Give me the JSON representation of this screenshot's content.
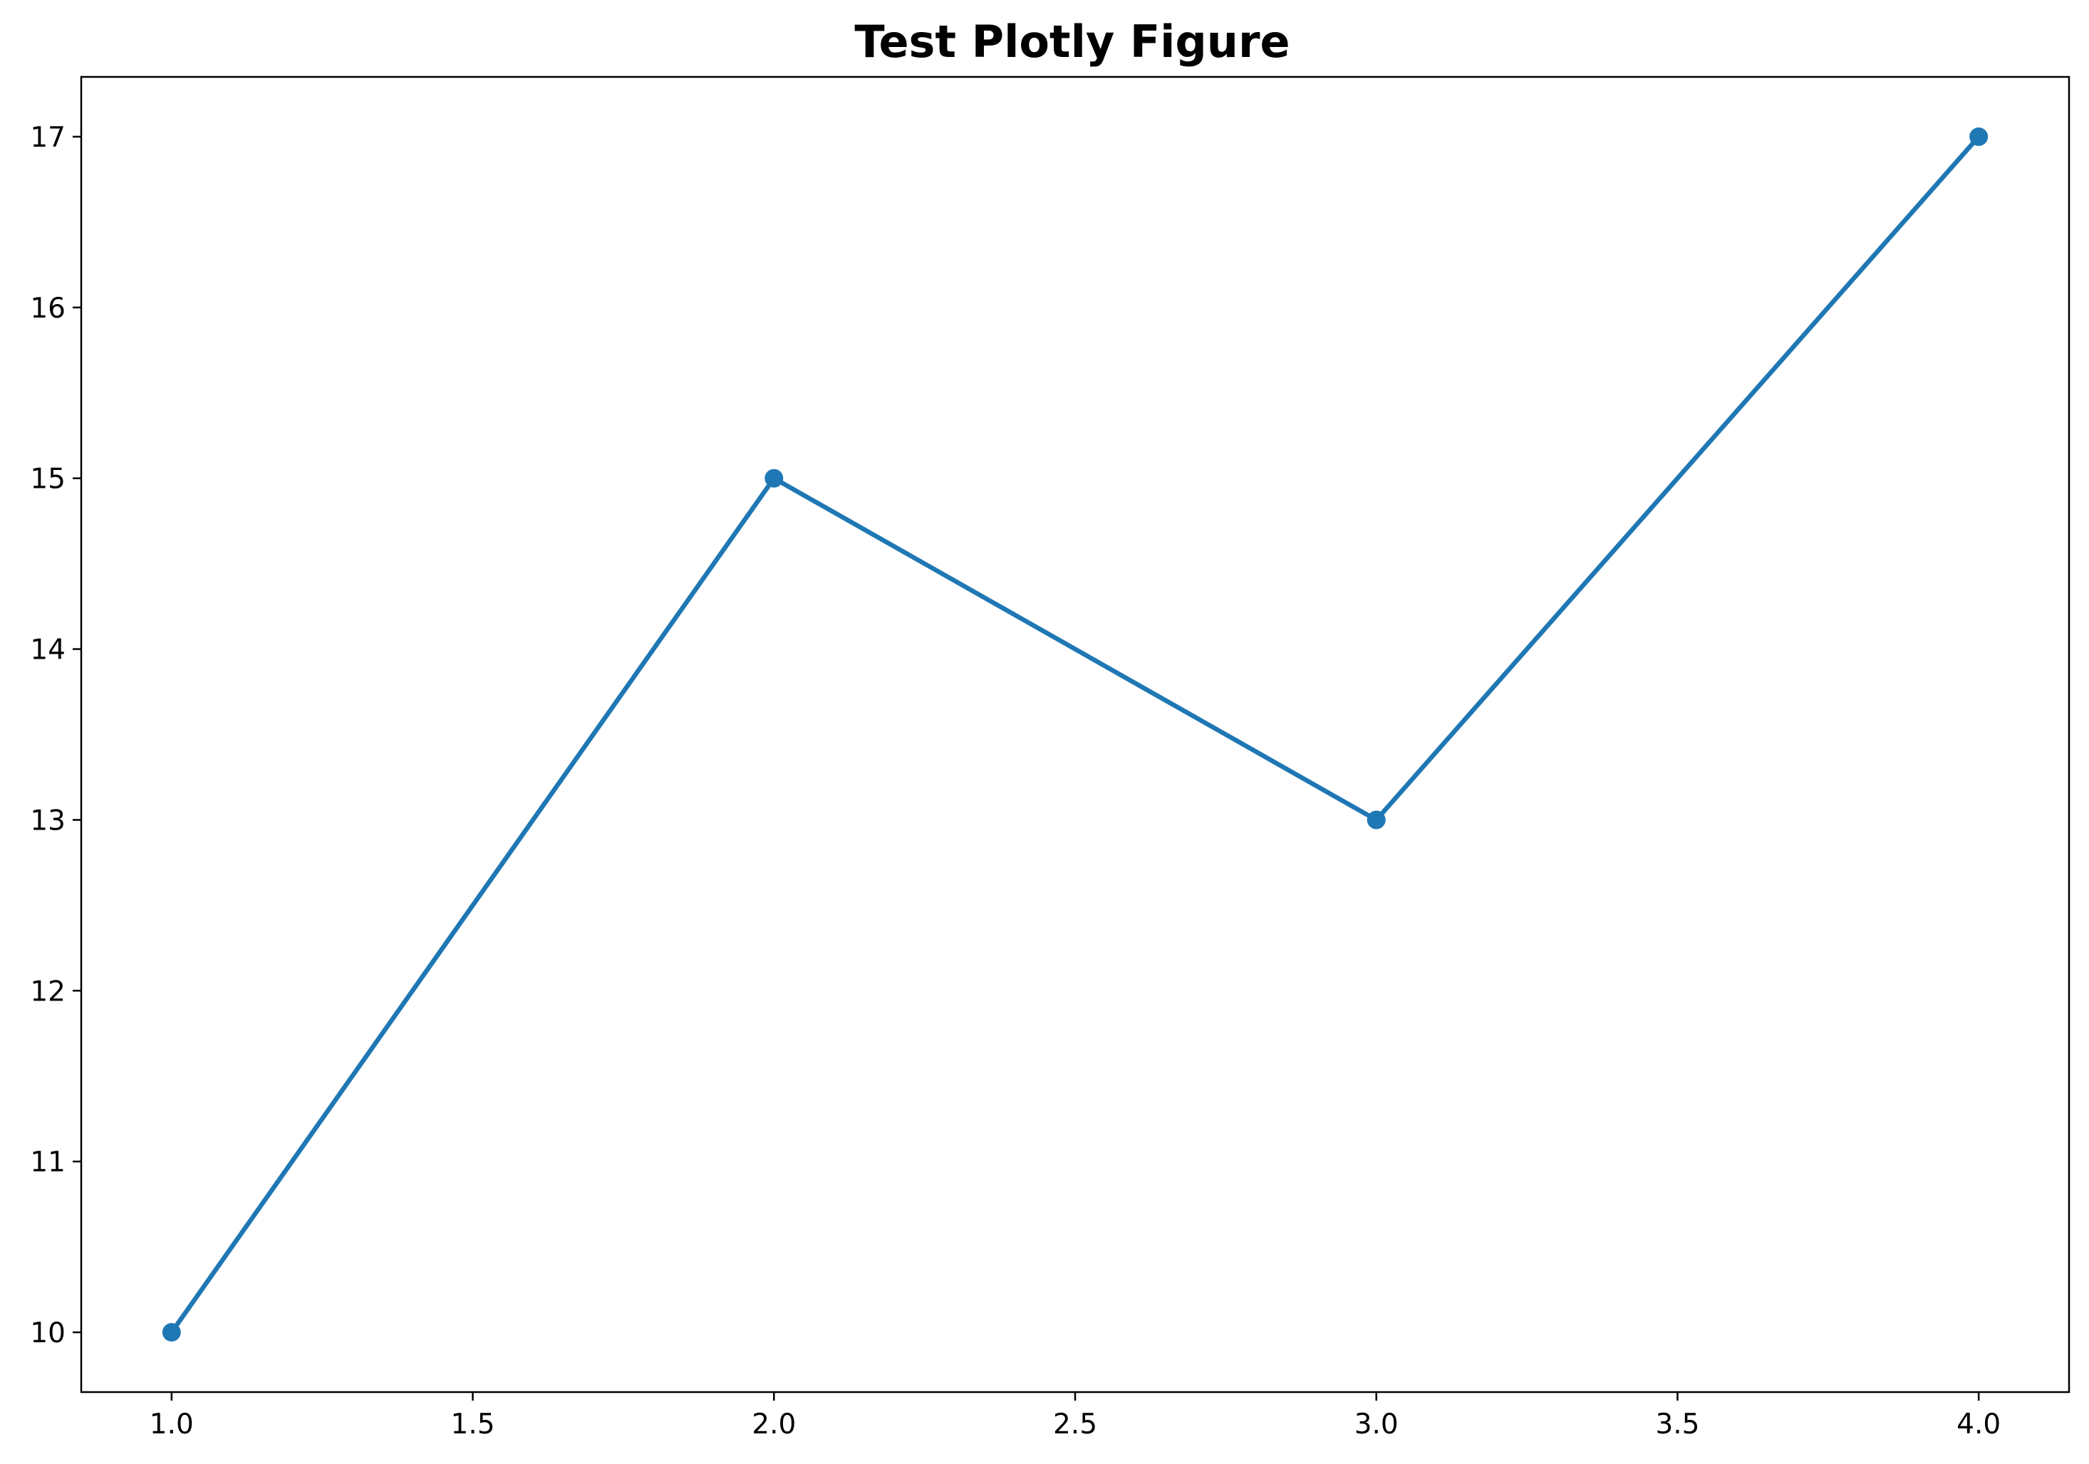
{
  "chart_data": {
    "type": "line",
    "title": "Test Plotly Figure",
    "xlabel": "",
    "ylabel": "",
    "x": [
      1,
      2,
      3,
      4
    ],
    "series": [
      {
        "values": [
          10,
          15,
          13,
          17
        ],
        "color": "#1f77b4",
        "markers": true
      }
    ],
    "xlim": [
      0.85,
      4.15
    ],
    "ylim": [
      9.65,
      17.35
    ],
    "x_ticks": [
      1.0,
      1.5,
      2.0,
      2.5,
      3.0,
      3.5,
      4.0
    ],
    "x_tick_labels": [
      "1.0",
      "1.5",
      "2.0",
      "2.5",
      "3.0",
      "3.5",
      "4.0"
    ],
    "y_ticks": [
      10,
      11,
      12,
      13,
      14,
      15,
      16,
      17
    ],
    "y_tick_labels": [
      "10",
      "11",
      "12",
      "13",
      "14",
      "15",
      "16",
      "17"
    ],
    "grid": false,
    "legend": "none"
  }
}
